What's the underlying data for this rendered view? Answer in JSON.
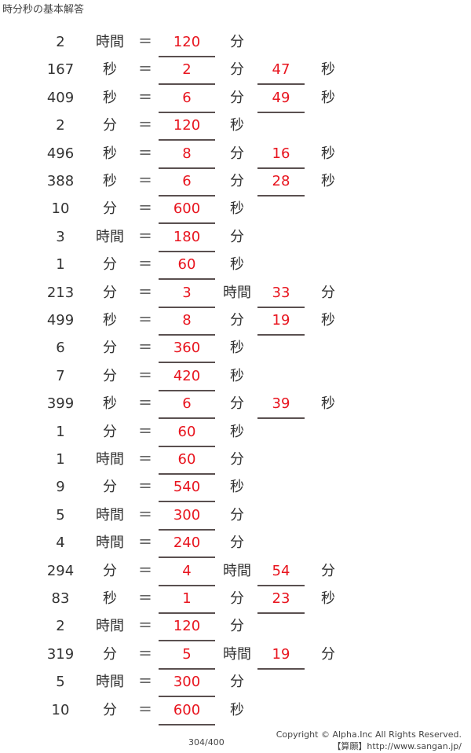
{
  "title": "時分秒の基本解答",
  "equals": "＝",
  "rows": [
    {
      "num": "2",
      "unit": "時間",
      "ans1": "120",
      "unit2": "分",
      "ans2": "",
      "unit3": ""
    },
    {
      "num": "167",
      "unit": "秒",
      "ans1": "2",
      "unit2": "分",
      "ans2": "47",
      "unit3": "秒"
    },
    {
      "num": "409",
      "unit": "秒",
      "ans1": "6",
      "unit2": "分",
      "ans2": "49",
      "unit3": "秒"
    },
    {
      "num": "2",
      "unit": "分",
      "ans1": "120",
      "unit2": "秒",
      "ans2": "",
      "unit3": ""
    },
    {
      "num": "496",
      "unit": "秒",
      "ans1": "8",
      "unit2": "分",
      "ans2": "16",
      "unit3": "秒"
    },
    {
      "num": "388",
      "unit": "秒",
      "ans1": "6",
      "unit2": "分",
      "ans2": "28",
      "unit3": "秒"
    },
    {
      "num": "10",
      "unit": "分",
      "ans1": "600",
      "unit2": "秒",
      "ans2": "",
      "unit3": ""
    },
    {
      "num": "3",
      "unit": "時間",
      "ans1": "180",
      "unit2": "分",
      "ans2": "",
      "unit3": ""
    },
    {
      "num": "1",
      "unit": "分",
      "ans1": "60",
      "unit2": "秒",
      "ans2": "",
      "unit3": ""
    },
    {
      "num": "213",
      "unit": "分",
      "ans1": "3",
      "unit2": "時間",
      "ans2": "33",
      "unit3": "分"
    },
    {
      "num": "499",
      "unit": "秒",
      "ans1": "8",
      "unit2": "分",
      "ans2": "19",
      "unit3": "秒"
    },
    {
      "num": "6",
      "unit": "分",
      "ans1": "360",
      "unit2": "秒",
      "ans2": "",
      "unit3": ""
    },
    {
      "num": "7",
      "unit": "分",
      "ans1": "420",
      "unit2": "秒",
      "ans2": "",
      "unit3": ""
    },
    {
      "num": "399",
      "unit": "秒",
      "ans1": "6",
      "unit2": "分",
      "ans2": "39",
      "unit3": "秒"
    },
    {
      "num": "1",
      "unit": "分",
      "ans1": "60",
      "unit2": "秒",
      "ans2": "",
      "unit3": ""
    },
    {
      "num": "1",
      "unit": "時間",
      "ans1": "60",
      "unit2": "分",
      "ans2": "",
      "unit3": ""
    },
    {
      "num": "9",
      "unit": "分",
      "ans1": "540",
      "unit2": "秒",
      "ans2": "",
      "unit3": ""
    },
    {
      "num": "5",
      "unit": "時間",
      "ans1": "300",
      "unit2": "分",
      "ans2": "",
      "unit3": ""
    },
    {
      "num": "4",
      "unit": "時間",
      "ans1": "240",
      "unit2": "分",
      "ans2": "",
      "unit3": ""
    },
    {
      "num": "294",
      "unit": "分",
      "ans1": "4",
      "unit2": "時間",
      "ans2": "54",
      "unit3": "分"
    },
    {
      "num": "83",
      "unit": "秒",
      "ans1": "1",
      "unit2": "分",
      "ans2": "23",
      "unit3": "秒"
    },
    {
      "num": "2",
      "unit": "時間",
      "ans1": "120",
      "unit2": "分",
      "ans2": "",
      "unit3": ""
    },
    {
      "num": "319",
      "unit": "分",
      "ans1": "5",
      "unit2": "時間",
      "ans2": "19",
      "unit3": "分"
    },
    {
      "num": "5",
      "unit": "時間",
      "ans1": "300",
      "unit2": "分",
      "ans2": "",
      "unit3": ""
    },
    {
      "num": "10",
      "unit": "分",
      "ans1": "600",
      "unit2": "秒",
      "ans2": "",
      "unit3": ""
    }
  ],
  "footer": {
    "page": "304/400",
    "copyright": "Copyright © Alpha.Inc All Rights Reserved.",
    "site": "【算願】http://www.sangan.jp/"
  },
  "colors": {
    "answer": "#e8141e",
    "underline": "#5a5050"
  }
}
